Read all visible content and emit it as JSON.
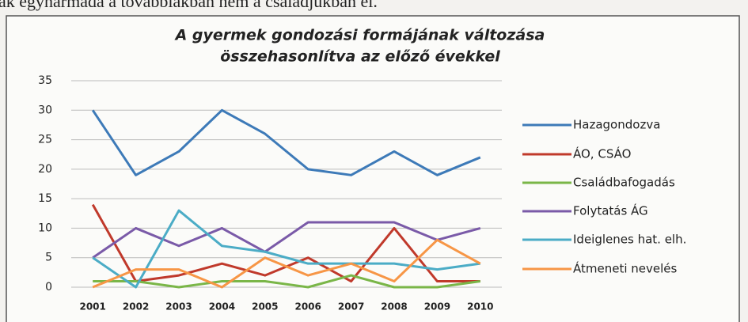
{
  "caption": "ak egyharmada a továbbiakban nem a családjukban él.",
  "chart_data": {
    "type": "line",
    "title": [
      "A gyermek gondozási formájának változása",
      "összehasonlítva az előző évekkel"
    ],
    "categories": [
      "2001",
      "2002",
      "2003",
      "2004",
      "2005",
      "2006",
      "2007",
      "2008",
      "2009",
      "2010"
    ],
    "series": [
      {
        "name": "Hazagondozva",
        "color": "#3d7ab8",
        "values": [
          30,
          19,
          23,
          30,
          26,
          20,
          19,
          23,
          19,
          22
        ]
      },
      {
        "name": "ÁO, CSÁO",
        "color": "#c0392b",
        "values": [
          14,
          1,
          2,
          4,
          2,
          5,
          1,
          10,
          1,
          1
        ]
      },
      {
        "name": "Családbafogadás",
        "color": "#7ab648",
        "values": [
          1,
          1,
          0,
          1,
          1,
          0,
          2,
          0,
          0,
          1
        ]
      },
      {
        "name": "Folytatás ÁG",
        "color": "#7a5aa8",
        "values": [
          5,
          10,
          7,
          10,
          6,
          11,
          11,
          11,
          8,
          10
        ]
      },
      {
        "name": "Ideiglenes hat. elh.",
        "color": "#4bacc6",
        "values": [
          5,
          0,
          13,
          7,
          6,
          4,
          4,
          4,
          3,
          4
        ]
      },
      {
        "name": "Átmeneti nevelés",
        "color": "#f79646",
        "values": [
          0,
          3,
          3,
          0,
          5,
          2,
          4,
          1,
          8,
          4
        ]
      }
    ],
    "ylim": [
      0,
      35
    ],
    "yticks": [
      0,
      5,
      10,
      15,
      20,
      25,
      30,
      35
    ],
    "grid": true,
    "legend": "right"
  }
}
